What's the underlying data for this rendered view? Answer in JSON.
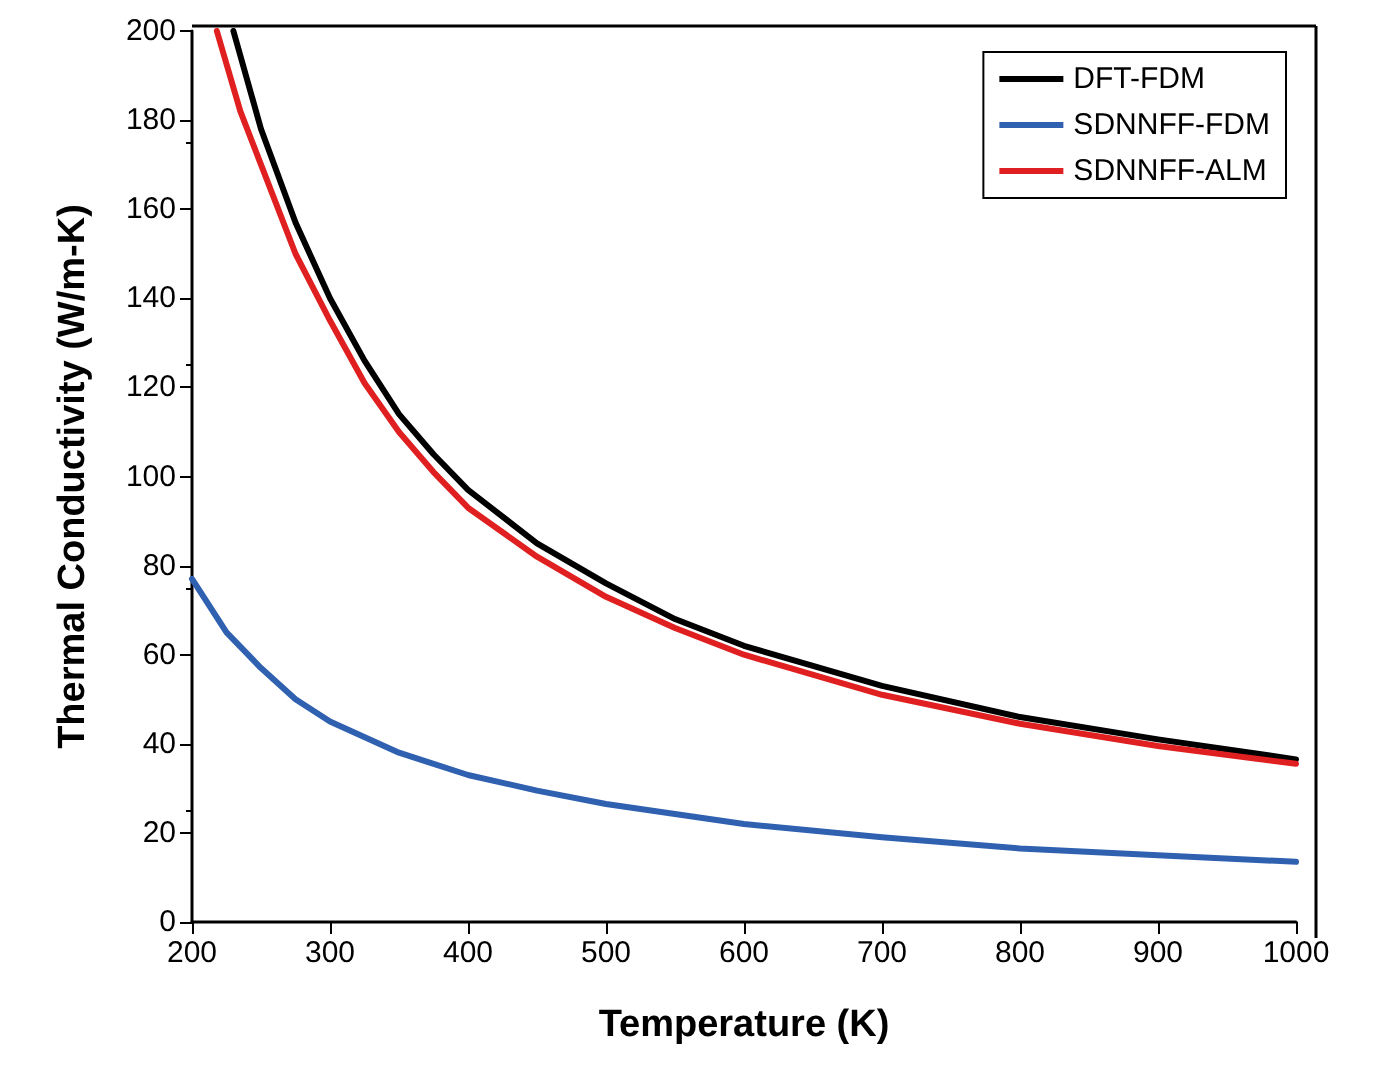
{
  "chart_data": {
    "type": "line",
    "xlabel": "Temperature (K)",
    "ylabel": "Thermal Conductivity (W/m-K)",
    "xlim": [
      200,
      1000
    ],
    "ylim": [
      0,
      200
    ],
    "xticks": [
      200,
      300,
      400,
      500,
      600,
      700,
      800,
      900,
      1000
    ],
    "yticks": [
      0,
      20,
      40,
      60,
      80,
      100,
      120,
      140,
      160,
      180,
      200
    ],
    "grid": false,
    "legend": "top right",
    "marker": "none",
    "line_style": "solid",
    "series": [
      {
        "name": "DFT-FDM",
        "color": "#000000",
        "x": [
          230,
          250,
          275,
          300,
          325,
          350,
          375,
          400,
          450,
          500,
          550,
          600,
          700,
          800,
          900,
          1000
        ],
        "values": [
          200,
          178,
          157,
          140,
          126,
          114,
          105,
          97,
          85,
          76,
          68,
          62,
          53,
          46,
          41,
          36.5
        ]
      },
      {
        "name": "SDNNFF-FDM",
        "color": "#3060b0",
        "x": [
          200,
          225,
          250,
          275,
          300,
          350,
          400,
          450,
          500,
          600,
          700,
          800,
          900,
          1000
        ],
        "values": [
          77,
          65,
          57,
          50,
          45,
          38,
          33,
          29.5,
          26.5,
          22,
          19,
          16.5,
          15,
          13.5
        ]
      },
      {
        "name": "SDNNFF-ALM",
        "color": "#e02020",
        "x": [
          218,
          235,
          250,
          275,
          300,
          325,
          350,
          375,
          400,
          450,
          500,
          550,
          600,
          700,
          800,
          900,
          1000
        ],
        "values": [
          200,
          182,
          170,
          150,
          135,
          121,
          110,
          101,
          93,
          82,
          73,
          66,
          60,
          51,
          44.5,
          39.5,
          35.5
        ]
      }
    ]
  }
}
